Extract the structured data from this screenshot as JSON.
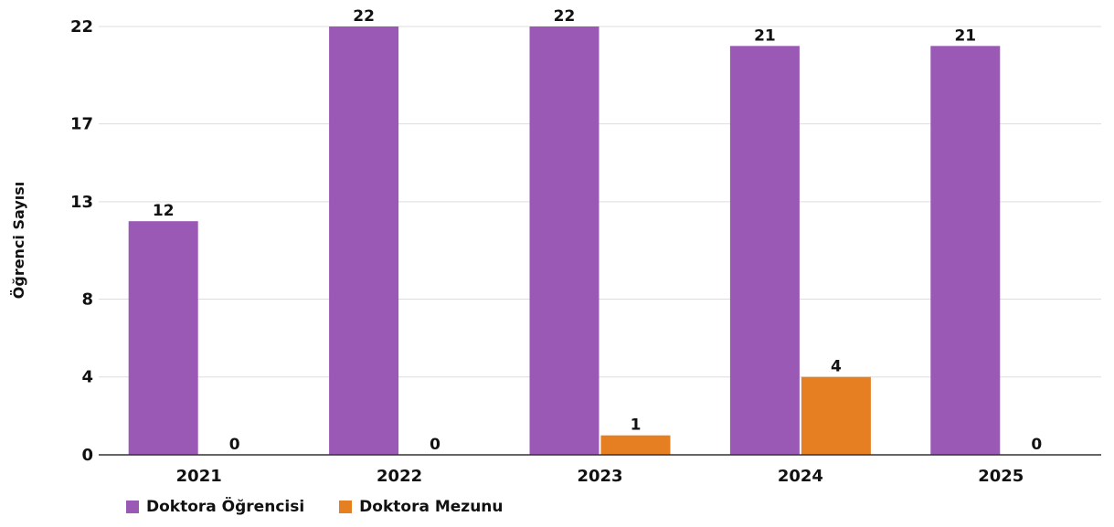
{
  "chart_data": {
    "type": "bar",
    "ylabel": "Öğrenci Sayısı",
    "xlabel": "",
    "categories": [
      "2021",
      "2022",
      "2023",
      "2024",
      "2025"
    ],
    "yticks": [
      0,
      4,
      8,
      13,
      17,
      22
    ],
    "ylim": [
      0,
      22
    ],
    "grid": true,
    "legend_position": "bottom-left",
    "series": [
      {
        "name": "Doktora Öğrencisi",
        "color": "#9b59b6",
        "values": [
          12,
          22,
          22,
          21,
          21
        ]
      },
      {
        "name": "Doktora Mezunu",
        "color": "#e67e22",
        "values": [
          0,
          0,
          1,
          4,
          0
        ]
      }
    ]
  }
}
